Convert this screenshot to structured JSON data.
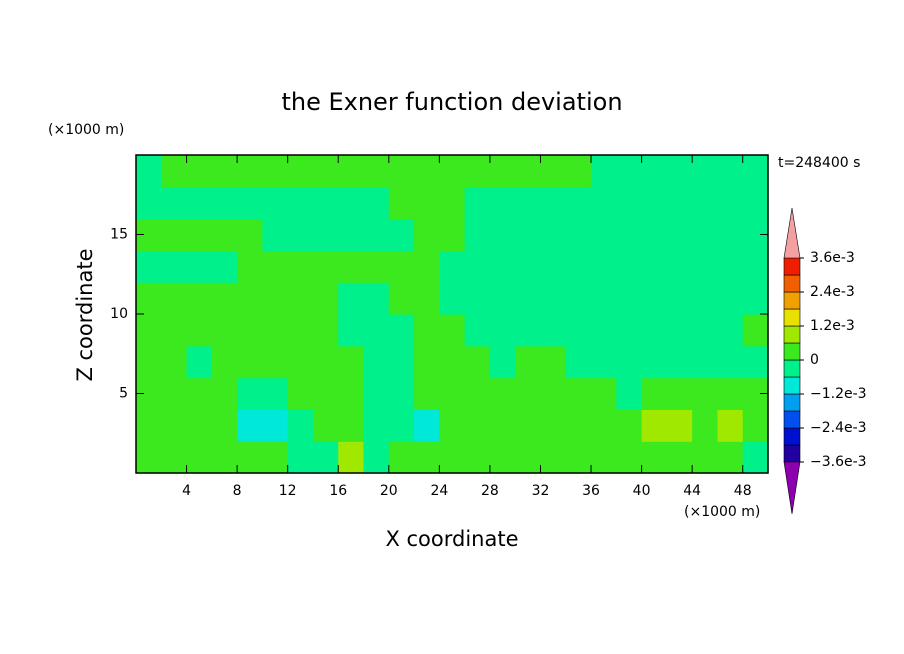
{
  "chart_data": {
    "type": "contour",
    "title": "the Exner function deviation",
    "x_label": "X coordinate",
    "y_label": "Z coordinate",
    "x_unit": "(×1000 m)",
    "y_unit": "(×1000 m)",
    "time_label": "t=248400 s",
    "xlim": [
      0,
      50
    ],
    "ylim": [
      0,
      20
    ],
    "xticks": [
      4,
      8,
      12,
      16,
      20,
      24,
      28,
      32,
      36,
      40,
      44,
      48
    ],
    "yticks": [
      5,
      10,
      15
    ],
    "levels": [
      -0.0036,
      -0.003,
      -0.0024,
      -0.0018,
      -0.0012,
      -0.0006,
      0,
      0.0006,
      0.0012,
      0.0018,
      0.0024,
      0.003,
      0.0036
    ],
    "colors": [
      "#8c00b0",
      "#2000a0",
      "#0010d0",
      "#0050f0",
      "#00a0f0",
      "#00e8d8",
      "#00f08c",
      "#3ce81e",
      "#a0e800",
      "#e8e000",
      "#f0a000",
      "#f06000",
      "#f01e00",
      "#f4a0a0"
    ],
    "colorbar_ticks": [
      {
        "value": 0.0036,
        "label": "3.6e-3"
      },
      {
        "value": 0.0024,
        "label": "2.4e-3"
      },
      {
        "value": 0.0012,
        "label": "1.2e-3"
      },
      0,
      {
        "value": -0.0012,
        "label": "−1.2e-3"
      },
      {
        "value": -0.0024,
        "label": "−2.4e-3"
      },
      {
        "value": -0.0036,
        "label": "−3.6e-3"
      }
    ],
    "z": [
      [
        0.0003,
        0.0003,
        0.0003,
        0.0003,
        0.0003,
        0.0003,
        -0.0003,
        -0.0003,
        0.0009,
        -0.0003,
        0.0003,
        0.0003,
        0.0003,
        0.0003,
        0.0003,
        0.0003,
        0.0003,
        0.0003,
        0.0003,
        0.0003,
        0.0003,
        0.0003,
        0.0003,
        0.0003,
        -0.0003
      ],
      [
        0.0003,
        0.0003,
        0.0003,
        0.0003,
        -0.0009,
        -0.0009,
        -0.0003,
        0.0003,
        0.0003,
        -0.0003,
        -0.0003,
        -0.0009,
        0.0003,
        0.0003,
        0.0003,
        0.0003,
        0.0003,
        0.0003,
        0.0003,
        0.0003,
        0.0009,
        0.0009,
        0.0003,
        0.0009,
        0.0003
      ],
      [
        0.0003,
        0.0003,
        0.0003,
        0.0003,
        -0.0003,
        -0.0003,
        0.0003,
        0.0003,
        0.0003,
        -0.0003,
        -0.0003,
        0.0003,
        0.0003,
        0.0003,
        0.0003,
        0.0003,
        0.0003,
        0.0003,
        0.0003,
        -0.0003,
        0.0003,
        0.0003,
        0.0003,
        0.0003,
        0.0003
      ],
      [
        0.0003,
        0.0003,
        -0.0003,
        0.0003,
        0.0003,
        0.0003,
        0.0003,
        0.0003,
        0.0003,
        -0.0003,
        -0.0003,
        0.0003,
        0.0003,
        0.0003,
        -0.0003,
        0.0003,
        0.0003,
        -0.0003,
        -0.0003,
        -0.0003,
        -0.0003,
        -0.0003,
        -0.0003,
        -0.0003,
        -0.0003
      ],
      [
        0.0003,
        0.0003,
        0.0003,
        0.0003,
        0.0003,
        0.0003,
        0.0003,
        0.0003,
        -0.0003,
        -0.0003,
        -0.0003,
        0.0003,
        0.0003,
        -0.0003,
        -0.0003,
        -0.0003,
        -0.0003,
        -0.0003,
        -0.0003,
        -0.0003,
        -0.0003,
        -0.0003,
        -0.0003,
        -0.0003,
        0.0003
      ],
      [
        0.0003,
        0.0003,
        0.0003,
        0.0003,
        0.0003,
        0.0003,
        0.0003,
        0.0003,
        -0.0003,
        -0.0003,
        0.0003,
        0.0003,
        -0.0003,
        -0.0003,
        -0.0003,
        -0.0003,
        -0.0003,
        -0.0003,
        -0.0003,
        -0.0003,
        -0.0003,
        -0.0003,
        -0.0003,
        -0.0003,
        -0.0003
      ],
      [
        -0.0003,
        -0.0003,
        -0.0003,
        -0.0003,
        0.0003,
        0.0003,
        0.0003,
        0.0003,
        0.0003,
        0.0003,
        0.0003,
        0.0003,
        -0.0003,
        -0.0003,
        -0.0003,
        -0.0003,
        -0.0003,
        -0.0003,
        -0.0003,
        -0.0003,
        -0.0003,
        -0.0003,
        -0.0003,
        -0.0003,
        -0.0003
      ],
      [
        0.0003,
        0.0003,
        0.0003,
        0.0003,
        0.0003,
        -0.0003,
        -0.0003,
        -0.0003,
        -0.0003,
        -0.0003,
        -0.0003,
        0.0003,
        0.0003,
        -0.0003,
        -0.0003,
        -0.0003,
        -0.0003,
        -0.0003,
        -0.0003,
        -0.0003,
        -0.0003,
        -0.0003,
        -0.0003,
        -0.0003,
        -0.0003
      ],
      [
        -0.0003,
        -0.0003,
        -0.0003,
        -0.0003,
        -0.0003,
        -0.0003,
        -0.0003,
        -0.0003,
        -0.0003,
        -0.0003,
        0.0003,
        0.0003,
        0.0003,
        -0.0003,
        -0.0003,
        -0.0003,
        -0.0003,
        -0.0003,
        -0.0003,
        -0.0003,
        -0.0003,
        -0.0003,
        -0.0003,
        -0.0003,
        -0.0003
      ],
      [
        -0.0003,
        0.0003,
        0.0003,
        0.0003,
        0.0003,
        0.0003,
        0.0003,
        0.0003,
        0.0003,
        0.0003,
        0.0003,
        0.0003,
        0.0003,
        0.0003,
        0.0003,
        0.0003,
        0.0003,
        0.0003,
        -0.0003,
        -0.0003,
        -0.0003,
        -0.0003,
        -0.0003,
        -0.0003,
        -0.0003
      ]
    ]
  }
}
